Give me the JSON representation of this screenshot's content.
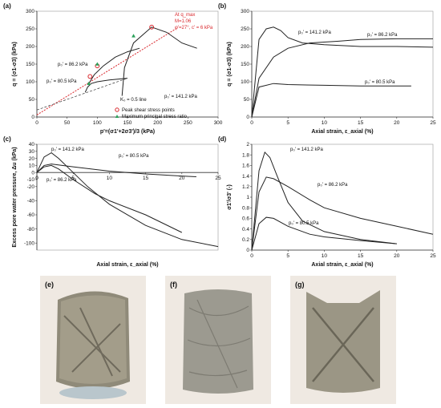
{
  "figure": {
    "panels": {
      "a": {
        "label": "(a)",
        "ylabel": "q = (σ1-σ3) (kPa)",
        "xlabel": "p'=(σ1'+2σ3')/3 (kPa)",
        "curve_labels": [
          "p₀' = 80.5 kPa",
          "p₀' = 86.2 kPa",
          "p₀' = 141.2 kPa"
        ],
        "annotation": [
          "At q_max",
          "M=1.06",
          "φ'=27°, c' = 6 kPa"
        ],
        "k0_label": "K₀ = 0.5 line",
        "legend": [
          "Peak shear stress points",
          "Maximum principal stress ratio"
        ]
      },
      "b": {
        "label": "(b)",
        "ylabel": "q = (σ1-σ3) (kPa)",
        "xlabel": "Axial strain, ε_axial (%)",
        "curve_labels": [
          "p₀' = 141.2 kPa",
          "p₀' = 86.2 kPa",
          "p₀' = 80.5 kPa"
        ]
      },
      "c": {
        "label": "(c)",
        "ylabel": "Excess pore water pressure, Δu (kPa)",
        "xlabel": "Axial strain, ε_axial (%)",
        "curve_labels": [
          "p₀' = 141.2 kPa",
          "p₀' = 80.5 kPa",
          "p₀' = 86.2 kPa"
        ]
      },
      "d": {
        "label": "(d)",
        "ylabel": "σ1'/σ3' (-)",
        "xlabel": "Axial strain, ε_axial (%)",
        "curve_labels": [
          "p₀' = 141.2 kPa",
          "p₀' = 86.2 kPa",
          "p₀' = 80.5 kPa"
        ]
      }
    },
    "photos": [
      {
        "label": "(e)"
      },
      {
        "label": "(f)"
      },
      {
        "label": "(g)"
      }
    ],
    "colors": {
      "red": "#d9262b",
      "green": "#2aa15a",
      "black": "#222222"
    }
  },
  "chart_data": [
    {
      "type": "line",
      "panel": "a",
      "xlim": [
        0,
        300
      ],
      "ylim": [
        0,
        300
      ],
      "xticks": [
        0,
        50,
        100,
        150,
        200,
        250,
        300
      ],
      "yticks": [
        0,
        50,
        100,
        150,
        200,
        250,
        300
      ],
      "series": [
        {
          "name": "p₀' = 80.5 kPa",
          "x": [
            80,
            84,
            90,
            100,
            120,
            150
          ],
          "y": [
            70,
            85,
            95,
            100,
            105,
            110
          ]
        },
        {
          "name": "p₀' = 86.2 kPa",
          "x": [
            86,
            95,
            110,
            130,
            150,
            170
          ],
          "y": [
            95,
            120,
            145,
            170,
            185,
            195
          ]
        },
        {
          "name": "p₀' = 141.2 kPa",
          "x": [
            141,
            145,
            160,
            190,
            215,
            240,
            265
          ],
          "y": [
            60,
            140,
            210,
            255,
            240,
            210,
            195
          ]
        }
      ],
      "failure_line": {
        "x": [
          0,
          230
        ],
        "y": [
          6,
          250
        ]
      },
      "k0_line": {
        "x": [
          0,
          150
        ],
        "y": [
          20,
          110
        ]
      },
      "peak_points": {
        "x": [
          190,
          100,
          88
        ],
        "y": [
          255,
          145,
          115
        ]
      },
      "max_ratio_points": {
        "x": [
          160,
          100,
          86
        ],
        "y": [
          230,
          150,
          95
        ]
      }
    },
    {
      "type": "line",
      "panel": "b",
      "xlim": [
        0,
        25
      ],
      "ylim": [
        0,
        300
      ],
      "xticks": [
        0,
        5,
        10,
        15,
        20,
        25
      ],
      "yticks": [
        0,
        50,
        100,
        150,
        200,
        250,
        300
      ],
      "series": [
        {
          "name": "p₀' = 141.2 kPa",
          "x": [
            0,
            1,
            2,
            3,
            4,
            5,
            7,
            10,
            15,
            20,
            25
          ],
          "y": [
            0,
            220,
            250,
            255,
            245,
            225,
            210,
            205,
            200,
            200,
            198
          ]
        },
        {
          "name": "p₀' = 86.2 kPa",
          "x": [
            0,
            1,
            3,
            5,
            8,
            12,
            15,
            20,
            25
          ],
          "y": [
            0,
            110,
            170,
            195,
            210,
            215,
            220,
            222,
            222
          ]
        },
        {
          "name": "p₀' = 80.5 kPa",
          "x": [
            0,
            1,
            3,
            5,
            10,
            15,
            20,
            22
          ],
          "y": [
            0,
            85,
            95,
            92,
            90,
            88,
            88,
            88
          ]
        }
      ]
    },
    {
      "type": "line",
      "panel": "c",
      "xlim": [
        0,
        25
      ],
      "ylim": [
        -110,
        40
      ],
      "xticks": [
        0,
        5,
        10,
        15,
        20,
        25
      ],
      "yticks": [
        40,
        30,
        20,
        10,
        0,
        -10,
        -20,
        -30,
        -40,
        -50,
        -60,
        -70,
        -80,
        -90,
        -100
      ],
      "series": [
        {
          "name": "p₀' = 141.2 kPa",
          "x": [
            0,
            1,
            2,
            3,
            5,
            7,
            10,
            15,
            20,
            25
          ],
          "y": [
            0,
            22,
            28,
            20,
            0,
            -20,
            -45,
            -75,
            -95,
            -105
          ]
        },
        {
          "name": "p₀' = 80.5 kPa",
          "x": [
            0,
            1,
            2,
            5,
            10,
            15,
            20,
            22
          ],
          "y": [
            0,
            10,
            12,
            8,
            2,
            -2,
            -5,
            -6
          ]
        },
        {
          "name": "p₀' = 86.2 kPa",
          "x": [
            0,
            1,
            2,
            3,
            5,
            8,
            10,
            15,
            20
          ],
          "y": [
            0,
            8,
            10,
            5,
            -10,
            -30,
            -40,
            -60,
            -85
          ]
        }
      ]
    },
    {
      "type": "line",
      "panel": "d",
      "xlim": [
        0,
        25
      ],
      "ylim": [
        0,
        2
      ],
      "xticks": [
        0,
        5,
        10,
        15,
        20,
        25
      ],
      "yticks": [
        0,
        0.2,
        0.4,
        0.6,
        0.8,
        1,
        1.2,
        1.4,
        1.6,
        1.8,
        2
      ],
      "series": [
        {
          "name": "p₀' = 141.2 kPa",
          "x": [
            0,
            1,
            1.8,
            2.5,
            3.5,
            5,
            7,
            10,
            15,
            20
          ],
          "y": [
            0,
            1.5,
            1.85,
            1.75,
            1.4,
            0.9,
            0.55,
            0.35,
            0.2,
            0.12
          ]
        },
        {
          "name": "p₀' = 86.2 kPa",
          "x": [
            0,
            1,
            2,
            3,
            5,
            8,
            10,
            15,
            20,
            25
          ],
          "y": [
            0,
            1.1,
            1.38,
            1.35,
            1.2,
            0.95,
            0.8,
            0.6,
            0.45,
            0.3
          ]
        },
        {
          "name": "p₀' = 80.5 kPa",
          "x": [
            0,
            1,
            2,
            3,
            5,
            8,
            10,
            15,
            20
          ],
          "y": [
            0,
            0.5,
            0.62,
            0.6,
            0.45,
            0.3,
            0.25,
            0.18,
            0.12
          ]
        }
      ]
    }
  ]
}
